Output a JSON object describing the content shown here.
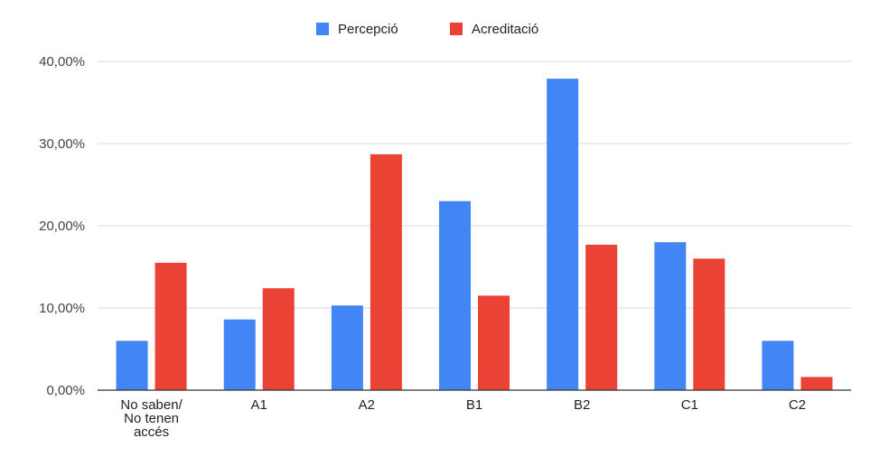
{
  "chart_data": {
    "type": "bar",
    "categories": [
      [
        "No saben/",
        "No tenen",
        "accés"
      ],
      [
        "A1"
      ],
      [
        "A2"
      ],
      [
        "B1"
      ],
      [
        "B2"
      ],
      [
        "C1"
      ],
      [
        "C2"
      ]
    ],
    "series": [
      {
        "name": "Percepció",
        "color": "#4285f4",
        "values": [
          6.0,
          8.6,
          10.3,
          23.0,
          37.9,
          18.0,
          6.0
        ]
      },
      {
        "name": "Acreditació",
        "color": "#ea4335",
        "values": [
          15.5,
          12.4,
          28.7,
          11.5,
          17.7,
          16.0,
          1.6
        ]
      }
    ],
    "yticks": [
      "0,00%",
      "10,00%",
      "20,00%",
      "30,00%",
      "40,00%"
    ],
    "ylim": [
      0,
      40
    ],
    "grid": true,
    "legend": "top-center",
    "xlabel": "",
    "ylabel": ""
  }
}
